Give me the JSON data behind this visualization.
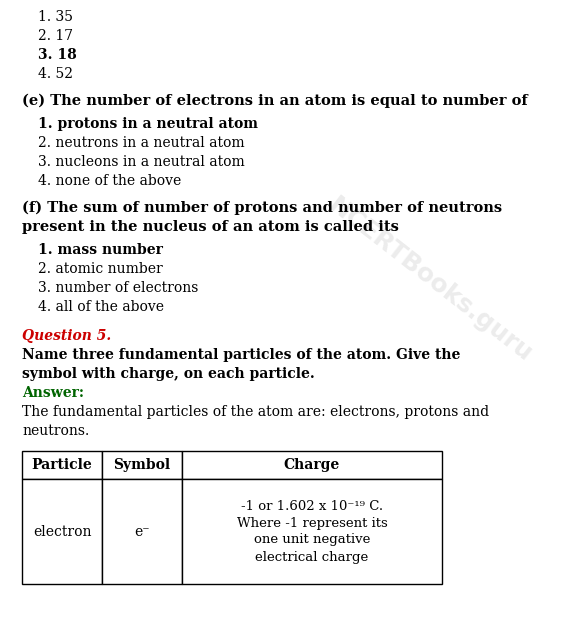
{
  "bg_color": "#ffffff",
  "watermark": "NCERTBooks.guru",
  "top_list": [
    {
      "num": "1.",
      "text": "35",
      "bold": false
    },
    {
      "num": "2.",
      "text": "17",
      "bold": false
    },
    {
      "num": "3.",
      "text": "18",
      "bold": true
    },
    {
      "num": "4.",
      "text": "52",
      "bold": false
    }
  ],
  "section_e_heading": "(e) The number of electrons in an atom is equal to number of",
  "section_e_options": [
    {
      "num": "1.",
      "text": "protons in a neutral atom",
      "bold": true
    },
    {
      "num": "2.",
      "text": "neutrons in a neutral atom",
      "bold": false
    },
    {
      "num": "3.",
      "text": "nucleons in a neutral atom",
      "bold": false
    },
    {
      "num": "4.",
      "text": "none of the above",
      "bold": false
    }
  ],
  "section_f_line1": "(f) The sum of number of protons and number of neutrons",
  "section_f_line2": "present in the nucleus of an atom is called its",
  "section_f_options": [
    {
      "num": "1.",
      "text": "mass number",
      "bold": true
    },
    {
      "num": "2.",
      "text": "atomic number",
      "bold": false
    },
    {
      "num": "3.",
      "text": "number of electrons",
      "bold": false
    },
    {
      "num": "4.",
      "text": "all of the above",
      "bold": false
    }
  ],
  "question_label": "Question 5.",
  "question_line1": "Name three fundamental particles of the atom. Give the",
  "question_line2": "symbol with charge, on each particle.",
  "answer_label": "Answer:",
  "answer_line1": "The fundamental particles of the atom are: electrons, protons and",
  "answer_line2": "neutrons.",
  "table_headers": [
    "Particle",
    "Symbol",
    "Charge"
  ],
  "table_particle": "electron",
  "table_symbol": "e⁻",
  "table_charge_lines": [
    "-1 or 1.602 x 10⁻¹⁹ C.",
    "Where -1 represent its",
    "one unit negative",
    "electrical charge"
  ],
  "red_color": "#cc0000",
  "green_color": "#006400",
  "black_color": "#000000"
}
